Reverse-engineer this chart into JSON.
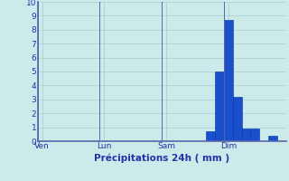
{
  "xlabel": "Précipitations 24h ( mm )",
  "background_color": "#cdeaea",
  "bar_color": "#1a4fcc",
  "bar_edge_color": "#0033aa",
  "grid_color": "#aacccc",
  "axis_color": "#5566aa",
  "text_color": "#2233aa",
  "ylim": [
    0,
    10
  ],
  "yticks": [
    0,
    1,
    2,
    3,
    4,
    5,
    6,
    7,
    8,
    9,
    10
  ],
  "num_bars": 28,
  "bar_values": [
    0,
    0,
    0,
    0,
    0,
    0,
    0,
    0,
    0,
    0,
    0,
    0,
    0,
    0,
    0,
    0,
    0,
    0,
    0,
    0.7,
    5.0,
    8.7,
    3.2,
    0.9,
    0.9,
    0,
    0.4,
    0
  ],
  "day_labels": [
    "Ven",
    "Lun",
    "Sam",
    "Dim"
  ],
  "day_positions": [
    0,
    7,
    14,
    21
  ]
}
